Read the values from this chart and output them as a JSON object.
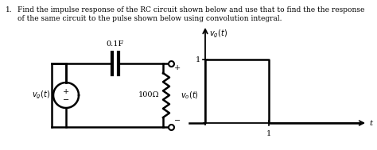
{
  "title_line1": "Find the impulse response of the RC circuit shown below and use that to find the the response",
  "title_line2": "of the same circuit to the pulse shown below using convolution integral.",
  "item_number": "1.",
  "cap_label": "0.1F",
  "res_label": "100Ω",
  "vo_label": "v_o(t)",
  "vg_circ_label": "v_g(t)",
  "vg_axis_label": "v_g(t)",
  "t_label": "t",
  "bg_color": "#ffffff",
  "text_color": "#000000",
  "line_color": "#000000",
  "lw": 1.8
}
